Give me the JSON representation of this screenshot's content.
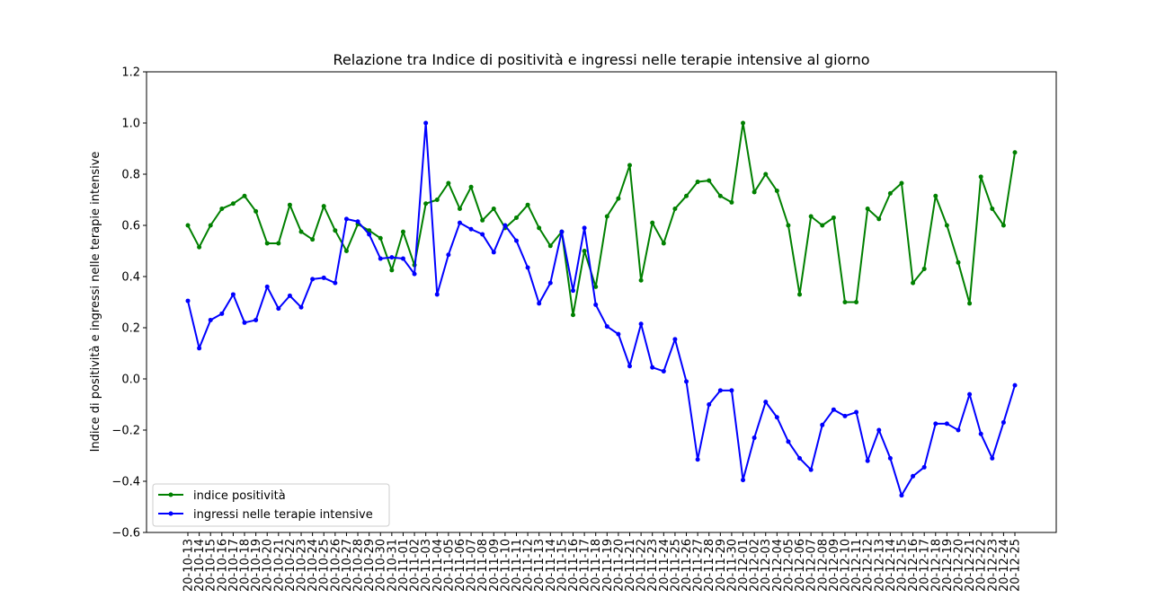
{
  "chart_data": {
    "type": "line",
    "title": "Relazione tra Indice di positività e ingressi nelle terapie intensive al giorno",
    "xlabel": "",
    "ylabel": "Indice di positività e ingressi nelle terapie intensive",
    "ylim": [
      -0.6,
      1.2
    ],
    "yticks": [
      -0.6,
      -0.4,
      -0.2,
      0.0,
      0.2,
      0.4,
      0.6,
      0.8,
      1.0,
      1.2
    ],
    "ytick_labels": [
      "−0.6",
      "−0.4",
      "−0.2",
      "0.0",
      "0.2",
      "0.4",
      "0.6",
      "0.8",
      "1.0",
      "1.2"
    ],
    "grid": false,
    "legend_position": "lower-left",
    "categories": [
      "20-10-13",
      "20-10-14",
      "20-10-15",
      "20-10-16",
      "20-10-17",
      "20-10-18",
      "20-10-19",
      "20-10-20",
      "20-10-21",
      "20-10-22",
      "20-10-23",
      "20-10-24",
      "20-10-25",
      "20-10-26",
      "20-10-27",
      "20-10-28",
      "20-10-29",
      "20-10-30",
      "20-10-31",
      "20-11-01",
      "20-11-02",
      "20-11-03",
      "20-11-04",
      "20-11-05",
      "20-11-06",
      "20-11-07",
      "20-11-08",
      "20-11-09",
      "20-11-10",
      "20-11-11",
      "20-11-12",
      "20-11-13",
      "20-11-14",
      "20-11-15",
      "20-11-16",
      "20-11-17",
      "20-11-18",
      "20-11-19",
      "20-11-20",
      "20-11-21",
      "20-11-22",
      "20-11-23",
      "20-11-24",
      "20-11-25",
      "20-11-26",
      "20-11-27",
      "20-11-28",
      "20-11-29",
      "20-11-30",
      "20-12-01",
      "20-12-02",
      "20-12-03",
      "20-12-04",
      "20-12-05",
      "20-12-06",
      "20-12-07",
      "20-12-08",
      "20-12-09",
      "20-12-10",
      "20-12-11",
      "20-12-12",
      "20-12-13",
      "20-12-14",
      "20-12-15",
      "20-12-16",
      "20-12-17",
      "20-12-18",
      "20-12-19",
      "20-12-20",
      "20-12-21",
      "20-12-22",
      "20-12-23",
      "20-12-24",
      "20-12-25"
    ],
    "series": [
      {
        "name": "indice positività",
        "color": "#008000",
        "values": [
          0.6,
          0.515,
          0.6,
          0.665,
          0.685,
          0.715,
          0.655,
          0.53,
          0.53,
          0.68,
          0.575,
          0.545,
          0.675,
          0.58,
          0.5,
          0.605,
          0.58,
          0.55,
          0.425,
          0.575,
          0.445,
          0.685,
          0.7,
          0.765,
          0.665,
          0.75,
          0.62,
          0.665,
          0.59,
          0.63,
          0.68,
          0.59,
          0.52,
          0.575,
          0.25,
          0.5,
          0.36,
          0.635,
          0.705,
          0.835,
          0.385,
          0.61,
          0.53,
          0.665,
          0.715,
          0.77,
          0.775,
          0.715,
          0.69,
          1.0,
          0.73,
          0.8,
          0.735,
          0.6,
          0.33,
          0.635,
          0.6,
          0.63,
          0.3,
          0.3,
          0.665,
          0.625,
          0.725,
          0.765,
          0.375,
          0.43,
          0.715,
          0.6,
          0.455,
          0.295,
          0.79,
          0.665,
          0.6,
          0.885
        ]
      },
      {
        "name": "ingressi nelle terapie intensive",
        "color": "#0000ff",
        "values": [
          0.305,
          0.12,
          0.23,
          0.255,
          0.33,
          0.22,
          0.23,
          0.36,
          0.275,
          0.325,
          0.28,
          0.39,
          0.395,
          0.375,
          0.625,
          0.615,
          0.565,
          0.47,
          0.475,
          0.47,
          0.41,
          1.0,
          0.33,
          0.485,
          0.61,
          0.585,
          0.565,
          0.495,
          0.6,
          0.54,
          0.435,
          0.295,
          0.375,
          0.575,
          0.345,
          0.59,
          0.29,
          0.205,
          0.175,
          0.05,
          0.215,
          0.045,
          0.03,
          0.155,
          -0.01,
          -0.315,
          -0.1,
          -0.045,
          -0.045,
          -0.395,
          -0.23,
          -0.09,
          -0.15,
          -0.245,
          -0.31,
          -0.355,
          -0.18,
          -0.12,
          -0.145,
          -0.13,
          -0.32,
          -0.2,
          -0.31,
          -0.455,
          -0.38,
          -0.345,
          -0.175,
          -0.175,
          -0.2,
          -0.06,
          -0.215,
          -0.31,
          -0.17,
          -0.025
        ]
      }
    ]
  }
}
